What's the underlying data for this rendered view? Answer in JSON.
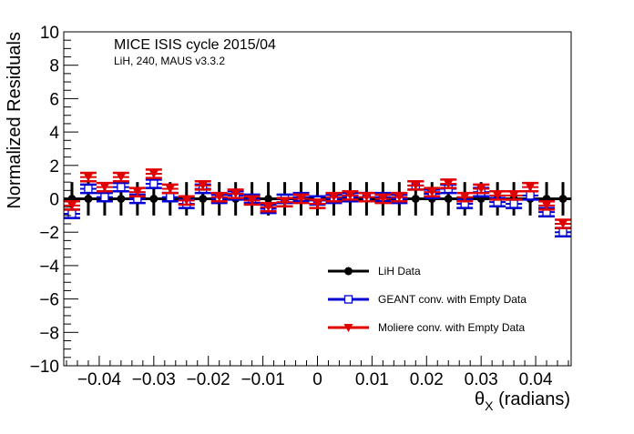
{
  "chart_data": {
    "type": "scatter",
    "title": "MICE ISIS cycle 2015/04",
    "subtitle": "LiH, 240, MAUS v3.3.2",
    "xlabel": "θ",
    "xlabel_sub": "X",
    "xlabel_unit": " (radians)",
    "ylabel": "Normalized Residuals",
    "xlim": [
      -0.0465,
      0.0465
    ],
    "ylim": [
      -10,
      10
    ],
    "x_ticks": [
      -0.04,
      -0.03,
      -0.02,
      -0.01,
      0,
      0.01,
      0.02,
      0.03,
      0.04
    ],
    "x_tick_labels": [
      "−0.04",
      "−0.03",
      "−0.02",
      "−0.01",
      "0",
      "0.01",
      "0.02",
      "0.03",
      "0.04"
    ],
    "y_ticks": [
      -10,
      -8,
      -6,
      -4,
      -2,
      0,
      2,
      4,
      6,
      8,
      10
    ],
    "y_tick_labels": [
      "−10",
      "−8",
      "−6",
      "−4",
      "−2",
      "0",
      "2",
      "4",
      "6",
      "8",
      "10"
    ],
    "grid": false,
    "legend_position": "bottom-right",
    "x": [
      -0.045,
      -0.042,
      -0.039,
      -0.036,
      -0.033,
      -0.03,
      -0.027,
      -0.024,
      -0.021,
      -0.018,
      -0.015,
      -0.012,
      -0.009,
      -0.006,
      -0.003,
      0.0,
      0.003,
      0.006,
      0.009,
      0.012,
      0.015,
      0.018,
      0.021,
      0.024,
      0.027,
      0.03,
      0.033,
      0.036,
      0.039,
      0.042,
      0.045
    ],
    "series": [
      {
        "name": "LiH Data",
        "color": "#000000",
        "marker": "filled-circle",
        "values": [
          0,
          0,
          0,
          0,
          0,
          0,
          0,
          0,
          0,
          0,
          0,
          0,
          0,
          0,
          0,
          0,
          0,
          0,
          0,
          0,
          0,
          0,
          0,
          0,
          0,
          0,
          0,
          0,
          0,
          0,
          0
        ],
        "errors": [
          1,
          1,
          1,
          1,
          1,
          1,
          1,
          1,
          1,
          1,
          1,
          1,
          1,
          1,
          1,
          1,
          1,
          1,
          1,
          1,
          1,
          1,
          1,
          1,
          1,
          1,
          1,
          1,
          1,
          1,
          1
        ]
      },
      {
        "name": "GEANT conv. with Empty Data",
        "color": "#0000d0",
        "marker": "open-square",
        "values": [
          -0.9,
          0.6,
          0.1,
          0.7,
          0.0,
          0.9,
          0.1,
          -0.3,
          0.6,
          0.0,
          0.2,
          0.0,
          -0.6,
          0.0,
          0.1,
          -0.1,
          0.0,
          0.1,
          0.1,
          0.1,
          0.0,
          0.8,
          0.3,
          0.6,
          -0.3,
          0.4,
          -0.2,
          -0.3,
          0.2,
          -0.8,
          -2.0
        ],
        "errors": [
          0.25,
          0.25,
          0.25,
          0.25,
          0.25,
          0.25,
          0.25,
          0.25,
          0.25,
          0.25,
          0.25,
          0.25,
          0.25,
          0.25,
          0.25,
          0.25,
          0.25,
          0.25,
          0.25,
          0.25,
          0.25,
          0.25,
          0.25,
          0.25,
          0.25,
          0.25,
          0.25,
          0.25,
          0.25,
          0.25,
          0.25
        ]
      },
      {
        "name": "Moliere conv. with Empty Data",
        "color": "#e00000",
        "marker": "filled-triangle-down",
        "values": [
          -0.4,
          1.3,
          0.7,
          1.3,
          0.4,
          1.5,
          0.6,
          -0.1,
          0.8,
          0.1,
          0.3,
          -0.1,
          -0.5,
          -0.2,
          0.0,
          -0.3,
          0.1,
          0.2,
          0.1,
          0.0,
          0.1,
          0.8,
          0.4,
          0.9,
          0.1,
          0.6,
          0.2,
          0.2,
          0.7,
          -0.4,
          -1.5
        ],
        "errors": [
          0.25,
          0.25,
          0.25,
          0.25,
          0.25,
          0.25,
          0.25,
          0.25,
          0.25,
          0.25,
          0.25,
          0.25,
          0.25,
          0.25,
          0.25,
          0.25,
          0.25,
          0.25,
          0.25,
          0.25,
          0.25,
          0.25,
          0.25,
          0.25,
          0.25,
          0.25,
          0.25,
          0.25,
          0.25,
          0.25,
          0.25
        ]
      }
    ]
  }
}
